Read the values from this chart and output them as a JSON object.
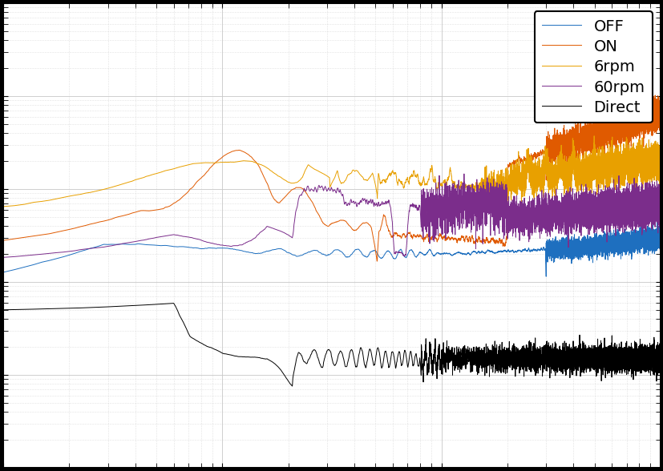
{
  "legend_labels": [
    "OFF",
    "ON",
    "6rpm",
    "60rpm",
    "Direct"
  ],
  "line_colors": [
    "#1E6FBF",
    "#E05A00",
    "#E8A000",
    "#7B2D8B",
    "#000000"
  ],
  "xlim": [
    1,
    1000
  ],
  "ylim": [
    1e-08,
    0.001
  ],
  "background_color": "#ffffff",
  "grid_color": "#c8c8c8",
  "figsize": [
    8.28,
    5.88
  ],
  "dpi": 100,
  "fig_bg": "#000000"
}
